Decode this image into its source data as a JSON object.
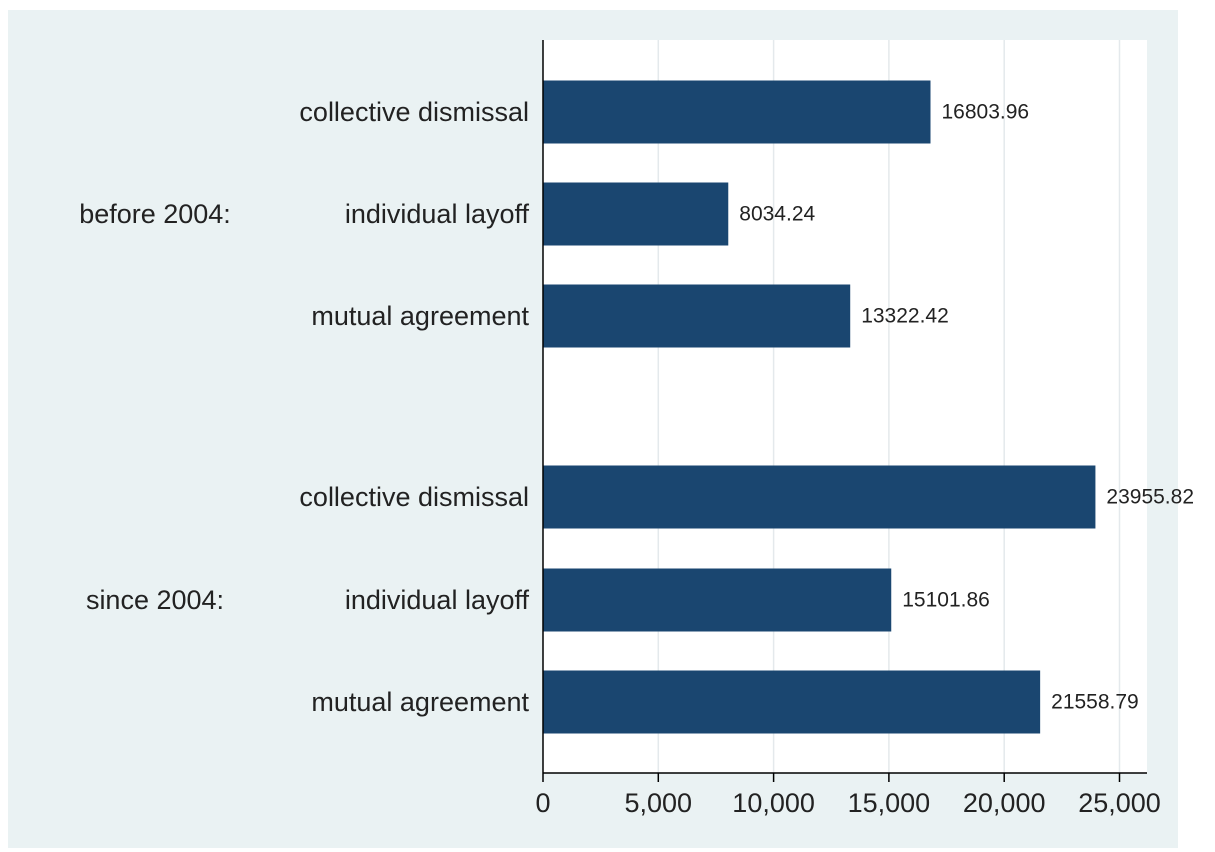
{
  "colors": {
    "outer_background": "#ffffff",
    "chart_background": "#eaf2f3",
    "plot_background": "#ffffff",
    "bar": "#1a4670",
    "gridline": "#e4e9ec",
    "axis": "#000000"
  },
  "chart_data": {
    "type": "bar",
    "orientation": "horizontal",
    "title": "",
    "xlabel": "",
    "ylabel": "",
    "xlim": [
      0,
      26500
    ],
    "ticks": [
      0,
      5000,
      10000,
      15000,
      20000,
      25000
    ],
    "tick_labels": [
      "0",
      "5,000",
      "10,000",
      "15,000",
      "20,000",
      "25,000"
    ],
    "grid": true,
    "legend": "none",
    "groups": [
      {
        "name": "before 2004:",
        "categories": [
          "collective dismissal",
          "individual layoff",
          "mutual agreement"
        ],
        "values": [
          16803.96,
          8034.24,
          13322.42
        ],
        "value_labels": [
          "16803.96",
          "8034.24",
          "13322.42"
        ]
      },
      {
        "name": "since 2004:",
        "categories": [
          "collective dismissal",
          "individual layoff",
          "mutual agreement"
        ],
        "values": [
          23955.82,
          15101.86,
          21558.79
        ],
        "value_labels": [
          "23955.82",
          "15101.86",
          "21558.79"
        ]
      }
    ]
  }
}
